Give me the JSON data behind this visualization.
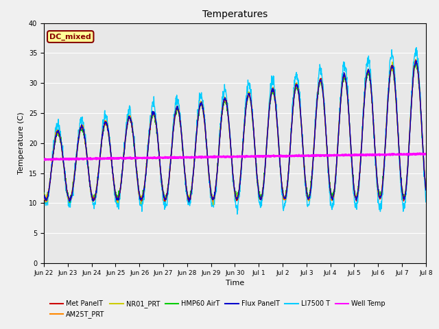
{
  "title": "Temperatures",
  "xlabel": "Time",
  "ylabel": "Temperature (C)",
  "annotation": "DC_mixed",
  "ylim": [
    0,
    40
  ],
  "yticks": [
    0,
    5,
    10,
    15,
    20,
    25,
    30,
    35,
    40
  ],
  "series": {
    "Met_PanelT": {
      "color": "#cc0000",
      "lw": 1.0,
      "zorder": 5
    },
    "AM25T_PRT": {
      "color": "#ff8800",
      "lw": 1.0,
      "zorder": 4
    },
    "NR01_PRT": {
      "color": "#cccc00",
      "lw": 1.0,
      "zorder": 3
    },
    "HMP60_AirT": {
      "color": "#00cc00",
      "lw": 1.0,
      "zorder": 3
    },
    "Flux_PanelT": {
      "color": "#0000cc",
      "lw": 1.0,
      "zorder": 6
    },
    "LI7500_T": {
      "color": "#00ccff",
      "lw": 1.0,
      "zorder": 2
    },
    "Well_Temp": {
      "color": "#ff00ff",
      "lw": 2.0,
      "zorder": 7
    }
  },
  "legend_entries": [
    {
      "label": "Met PanelT",
      "color": "#cc0000"
    },
    {
      "label": "AM25T_PRT",
      "color": "#ff8800"
    },
    {
      "label": "NR01_PRT",
      "color": "#cccc00"
    },
    {
      "label": "HMP60 AirT",
      "color": "#00cc00"
    },
    {
      "label": "Flux PanelT",
      "color": "#0000cc"
    },
    {
      "label": "LI7500 T",
      "color": "#00ccff"
    },
    {
      "label": "Well Temp",
      "color": "#ff00ff"
    }
  ],
  "background_color": "#e8e8e8",
  "grid_color": "#ffffff",
  "annotation_box_color": "#ffff99",
  "annotation_text_color": "#880000",
  "fig_bg": "#f0f0f0"
}
